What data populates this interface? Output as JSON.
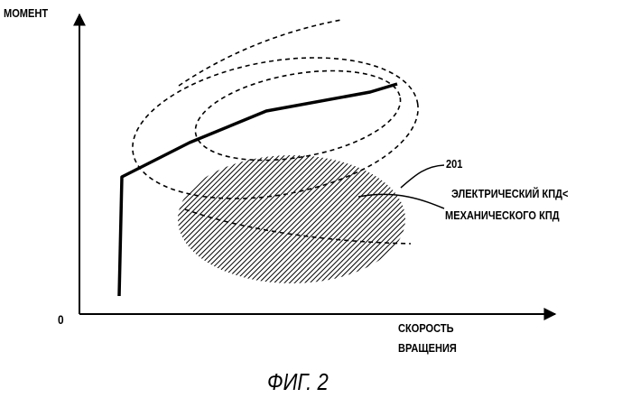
{
  "figure": {
    "y_axis_label": "МОМЕНТ",
    "origin_label": "0",
    "x_axis_label_line1": "СКОРОСТЬ",
    "x_axis_label_line2": "ВРАЩЕНИЯ",
    "region_number": "201",
    "region_label_line1": "ЭЛЕКТРИЧЕСКИЙ КПД<",
    "region_label_line2": "МЕХАНИЧЕСКОГО КПД",
    "caption": "ФИГ. 2"
  },
  "colors": {
    "ink": "#000000",
    "background": "#ffffff",
    "region_hatch": "#000000"
  }
}
